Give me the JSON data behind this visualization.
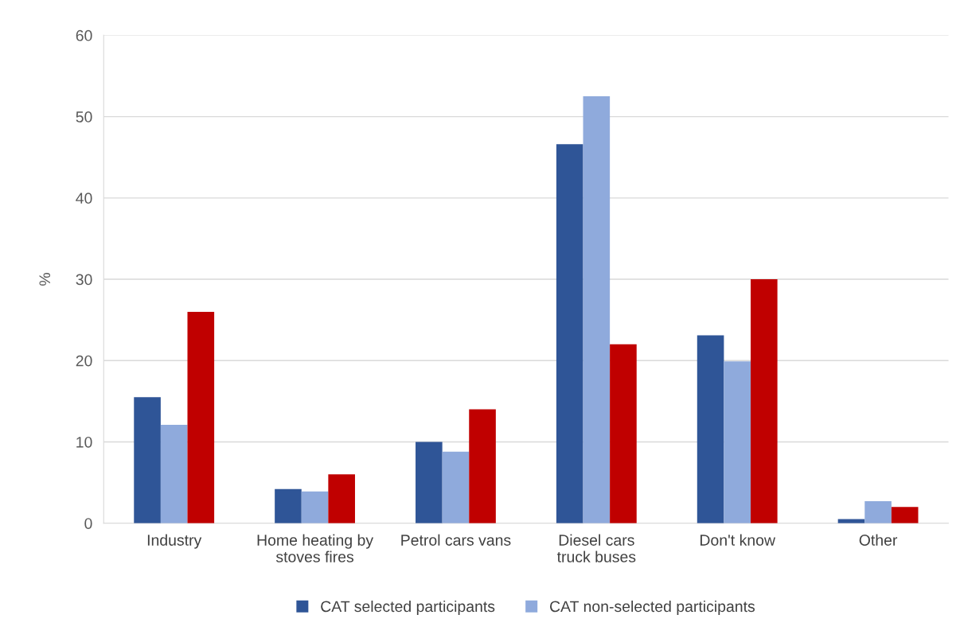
{
  "chart_data": {
    "type": "bar",
    "ylabel": "%",
    "categories": [
      "Industry",
      "Home heating by stoves fires",
      "Petrol cars vans",
      "Diesel cars truck buses",
      "Don't know",
      "Other"
    ],
    "series": [
      {
        "name": "CAT selected participants",
        "color": "#2f5597",
        "values": [
          15.5,
          4.2,
          10,
          46.6,
          23.1,
          0.5
        ]
      },
      {
        "name": "CAT non-selected participants",
        "color": "#8faadc",
        "values": [
          12.1,
          3.9,
          8.8,
          52.5,
          19.9,
          2.7
        ]
      },
      {
        "color": "#c00000",
        "values": [
          26,
          6,
          14,
          22,
          30,
          2
        ]
      }
    ],
    "ylim": [
      0,
      60
    ],
    "yticks": [
      0,
      10,
      20,
      30,
      40,
      50,
      60
    ],
    "grid": "y",
    "legend": "bottom"
  }
}
